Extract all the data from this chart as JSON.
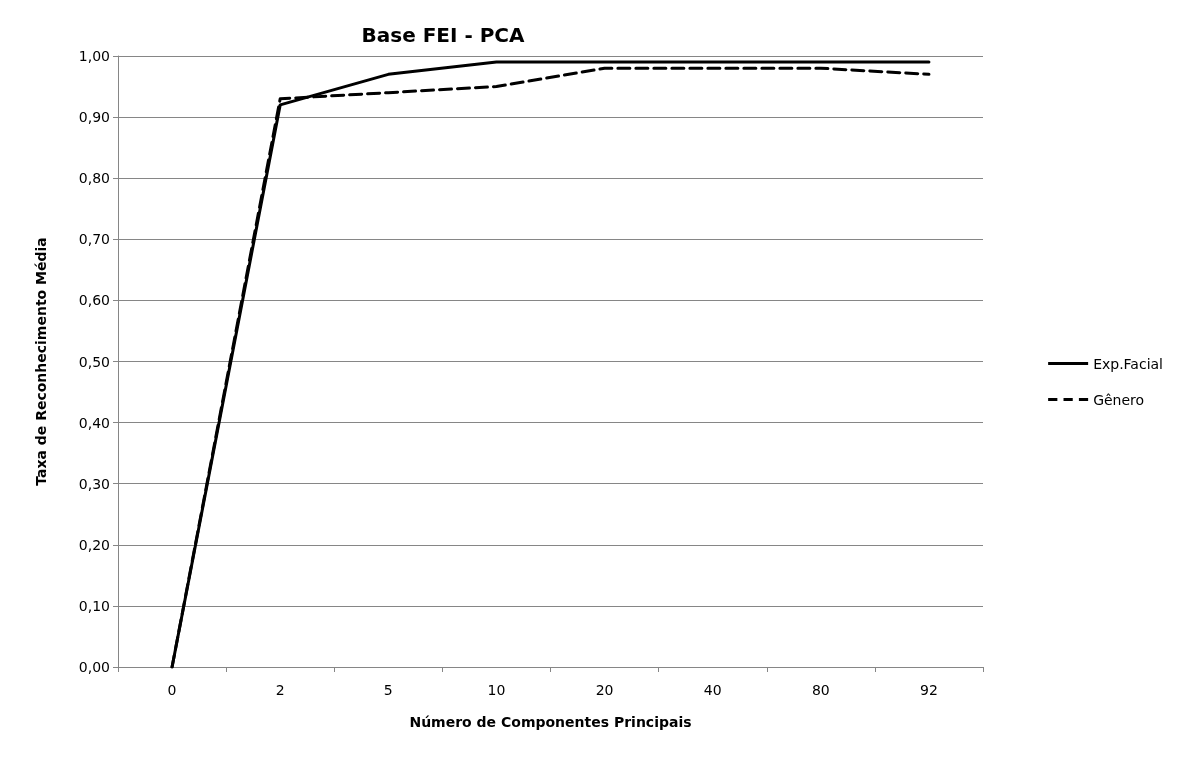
{
  "chart_data": {
    "type": "line",
    "title": "Base FEI - PCA",
    "xlabel": "Número de Componentes Principais",
    "ylabel": "Taxa de Reconhecimento Média",
    "categories": [
      "0",
      "2",
      "5",
      "10",
      "20",
      "40",
      "80",
      "92"
    ],
    "series": [
      {
        "name": "Exp.Facial",
        "color": "#000000",
        "line_style": "solid",
        "values": [
          0,
          0.92,
          0.97,
          0.99,
          0.99,
          0.99,
          0.99,
          0.99
        ]
      },
      {
        "name": "Gênero",
        "color": "#000000",
        "line_style": "dashed",
        "values": [
          0,
          0.93,
          0.94,
          0.95,
          0.98,
          0.98,
          0.98,
          0.97
        ]
      }
    ],
    "ylim": [
      0,
      1
    ],
    "yticks": [
      {
        "value": 0,
        "label": "0,00"
      },
      {
        "value": 0.1,
        "label": "0,10"
      },
      {
        "value": 0.2,
        "label": "0,20"
      },
      {
        "value": 0.3,
        "label": "0,30"
      },
      {
        "value": 0.4,
        "label": "0,40"
      },
      {
        "value": 0.5,
        "label": "0,50"
      },
      {
        "value": 0.6,
        "label": "0,60"
      },
      {
        "value": 0.7,
        "label": "0,70"
      },
      {
        "value": 0.8,
        "label": "0,80"
      },
      {
        "value": 0.9,
        "label": "0,90"
      },
      {
        "value": 1,
        "label": "1,00"
      }
    ],
    "grid": "y",
    "legend": "right",
    "marker": "none"
  }
}
